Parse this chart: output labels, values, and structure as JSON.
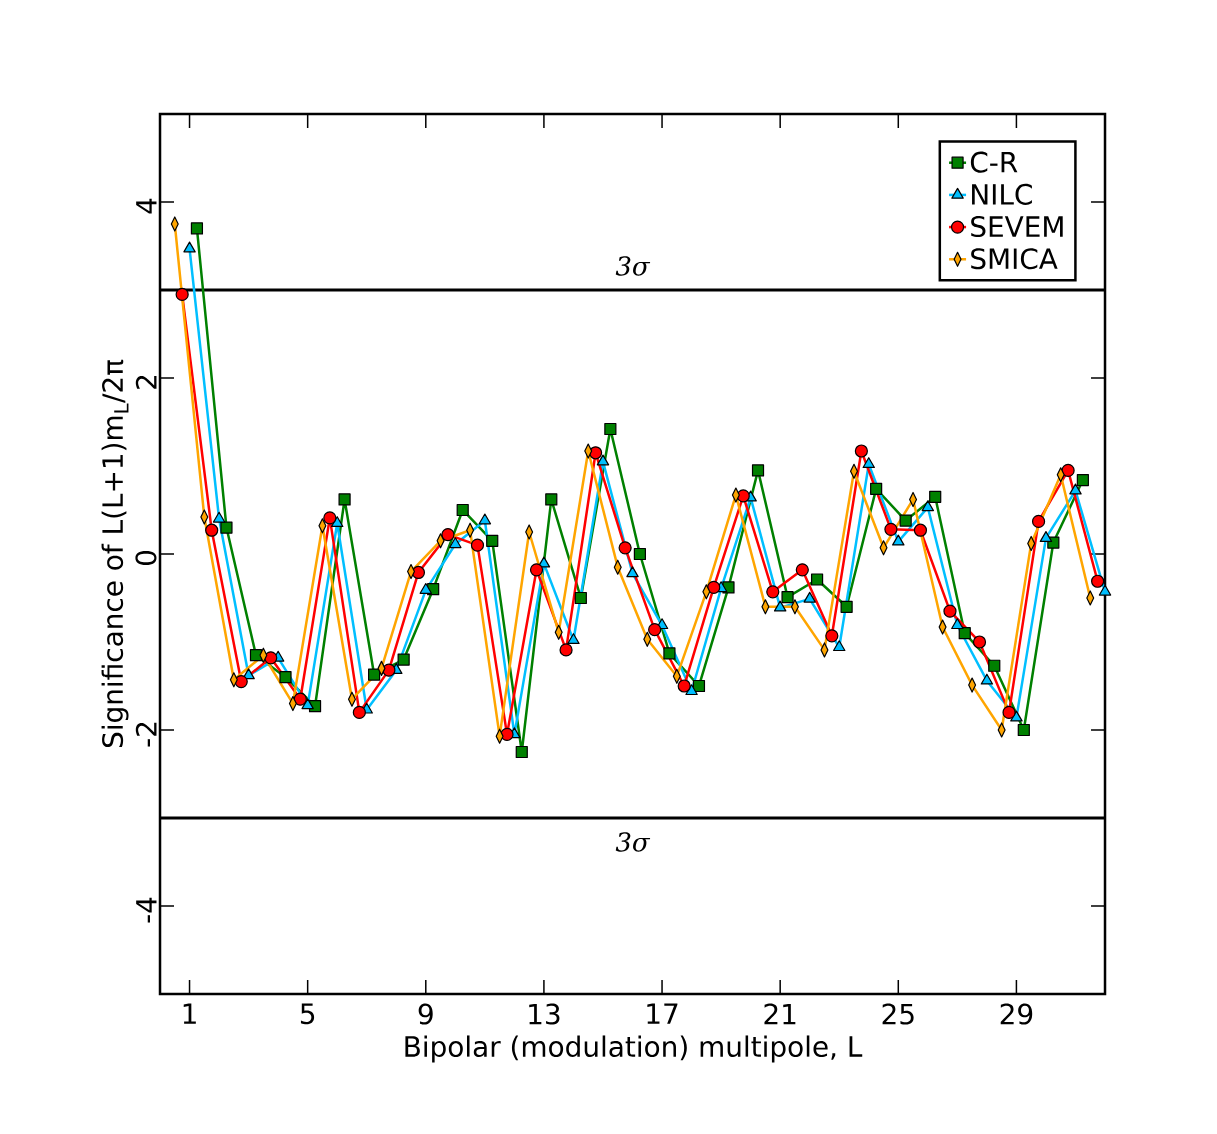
{
  "chart_data": {
    "type": "line",
    "xlabel": "Bipolar (modulation) multipole, L",
    "ylabel": "Significance of L(L+1)m$_{L}$/2π",
    "xlim": [
      0,
      32
    ],
    "ylim": [
      -5,
      5
    ],
    "xticks": [
      1,
      5,
      9,
      13,
      17,
      21,
      25,
      29
    ],
    "yticks": [
      -4,
      -2,
      0,
      2,
      4
    ],
    "legend": "top right",
    "ref_lines": [
      {
        "axis": "y",
        "value": 3,
        "label": "3σ",
        "color": "#000000"
      },
      {
        "axis": "y",
        "value": -3,
        "label": "3σ",
        "color": "#000000"
      }
    ],
    "series": [
      {
        "name": "C-R",
        "color": "#008000",
        "marker": "square",
        "x": [
          1.25,
          2.25,
          3.25,
          4.25,
          5.25,
          6.25,
          7.25,
          8.25,
          9.25,
          10.25,
          11.25,
          12.25,
          13.25,
          14.25,
          15.25,
          16.25,
          17.25,
          18.25,
          19.25,
          20.25,
          21.25,
          22.25,
          23.25,
          24.25,
          25.25,
          26.25,
          27.25,
          28.25,
          29.25,
          30.25,
          31.25
        ],
        "values": [
          3.7,
          0.3,
          -1.15,
          -1.4,
          -1.73,
          0.62,
          -1.37,
          -1.2,
          -0.4,
          0.5,
          0.15,
          -2.25,
          0.62,
          -0.5,
          1.42,
          0,
          -1.13,
          -1.5,
          -0.38,
          0.95,
          -0.49,
          -0.29,
          -0.6,
          0.74,
          0.38,
          0.65,
          -0.9,
          -1.27,
          -2.0,
          0.13,
          0.84
        ]
      },
      {
        "name": "NILC",
        "color": "#00bfff",
        "marker": "triangle",
        "x": [
          1,
          2,
          3,
          4,
          5,
          6,
          7,
          8,
          9,
          10,
          11,
          12,
          13,
          14,
          15,
          16,
          17,
          18,
          19,
          20,
          21,
          22,
          23,
          24,
          25,
          26,
          27,
          28,
          29,
          30,
          31,
          32
        ],
        "values": [
          3.47,
          0.4,
          -1.38,
          -1.18,
          -1.72,
          0.35,
          -1.77,
          -1.32,
          -0.41,
          0.11,
          0.38,
          -2.05,
          -0.11,
          -0.98,
          1.05,
          -0.22,
          -0.81,
          -1.56,
          -0.39,
          0.64,
          -0.61,
          -0.51,
          -1.06,
          1.02,
          0.14,
          0.53,
          -0.81,
          -1.44,
          -1.86,
          0.18,
          0.72,
          -0.43
        ]
      },
      {
        "name": "SEVEM",
        "color": "#ff0000",
        "marker": "circle",
        "x": [
          0.75,
          1.75,
          2.75,
          3.75,
          4.75,
          5.75,
          6.75,
          7.75,
          8.75,
          9.75,
          10.75,
          11.75,
          12.75,
          13.75,
          14.75,
          15.75,
          16.75,
          17.75,
          18.75,
          19.75,
          20.75,
          21.75,
          22.75,
          23.75,
          24.75,
          25.75,
          26.75,
          27.75,
          28.75,
          29.75,
          30.75,
          31.75
        ],
        "values": [
          2.95,
          0.27,
          -1.45,
          -1.18,
          -1.65,
          0.41,
          -1.8,
          -1.32,
          -0.21,
          0.22,
          0.1,
          -2.05,
          -0.18,
          -1.09,
          1.15,
          0.07,
          -0.86,
          -1.5,
          -0.38,
          0.66,
          -0.43,
          -0.18,
          -0.93,
          1.17,
          0.28,
          0.27,
          -0.65,
          -1.0,
          -1.8,
          0.37,
          0.95,
          -0.31
        ]
      },
      {
        "name": "SMICA",
        "color": "#ffa500",
        "marker": "diamond",
        "x": [
          0.5,
          1.5,
          2.5,
          3.5,
          4.5,
          5.5,
          6.5,
          7.5,
          8.5,
          9.5,
          10.5,
          11.5,
          12.5,
          13.5,
          14.5,
          15.5,
          16.5,
          17.5,
          18.5,
          19.5,
          20.5,
          21.5,
          22.5,
          23.5,
          24.5,
          25.5,
          26.5,
          27.5,
          28.5,
          29.5,
          30.5,
          31.5
        ],
        "values": [
          3.75,
          0.42,
          -1.43,
          -1.15,
          -1.7,
          0.32,
          -1.65,
          -1.3,
          -0.2,
          0.15,
          0.27,
          -2.07,
          0.25,
          -0.89,
          1.17,
          -0.15,
          -0.97,
          -1.39,
          -0.43,
          0.67,
          -0.6,
          -0.6,
          -1.09,
          0.94,
          0.07,
          0.62,
          -0.83,
          -1.49,
          -2.0,
          0.12,
          0.9,
          -0.5
        ]
      }
    ]
  }
}
